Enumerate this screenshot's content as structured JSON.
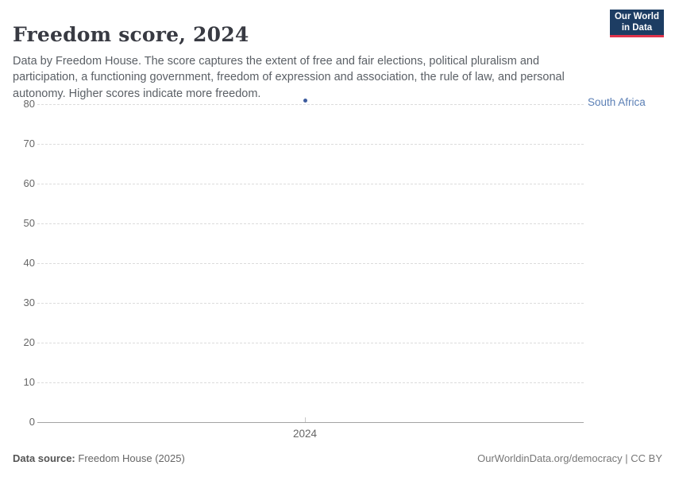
{
  "header": {
    "title": "Freedom score, 2024",
    "logo": {
      "line1": "Our World",
      "line2": "in Data"
    }
  },
  "subtitle": "Data by Freedom House. The score captures the extent of free and fair elections, political pluralism and participation, a functioning government, freedom of expression and association, the rule of law, and personal autonomy. Higher scores indicate more freedom.",
  "footer": {
    "source_label": "Data source:",
    "source_value": "Freedom House (2025)",
    "right_text": "OurWorldinData.org/democracy | CC BY"
  },
  "colors": {
    "logo_bg": "#1d3d63",
    "logo_accent": "#e0334b",
    "series_dot": "#3d5c9e",
    "series_label": "#5b7fb5",
    "gridline": "#dcdcdc",
    "axis_line": "#a3a3a3",
    "axis_text": "#666666"
  },
  "chart_data": {
    "type": "scatter",
    "title": "Freedom score, 2024",
    "xlabel": "",
    "ylabel": "",
    "ylim": [
      0,
      80
    ],
    "yticks": [
      0,
      10,
      20,
      30,
      40,
      50,
      60,
      70,
      80
    ],
    "xticks": [
      "2024"
    ],
    "x_values": [
      2024
    ],
    "grid": "horizontal-dashed",
    "legend_position": "right-inline-label",
    "series": [
      {
        "name": "South Africa",
        "color": "#3d5c9e",
        "points": [
          {
            "x": 2024,
            "y": 81
          }
        ]
      }
    ]
  }
}
